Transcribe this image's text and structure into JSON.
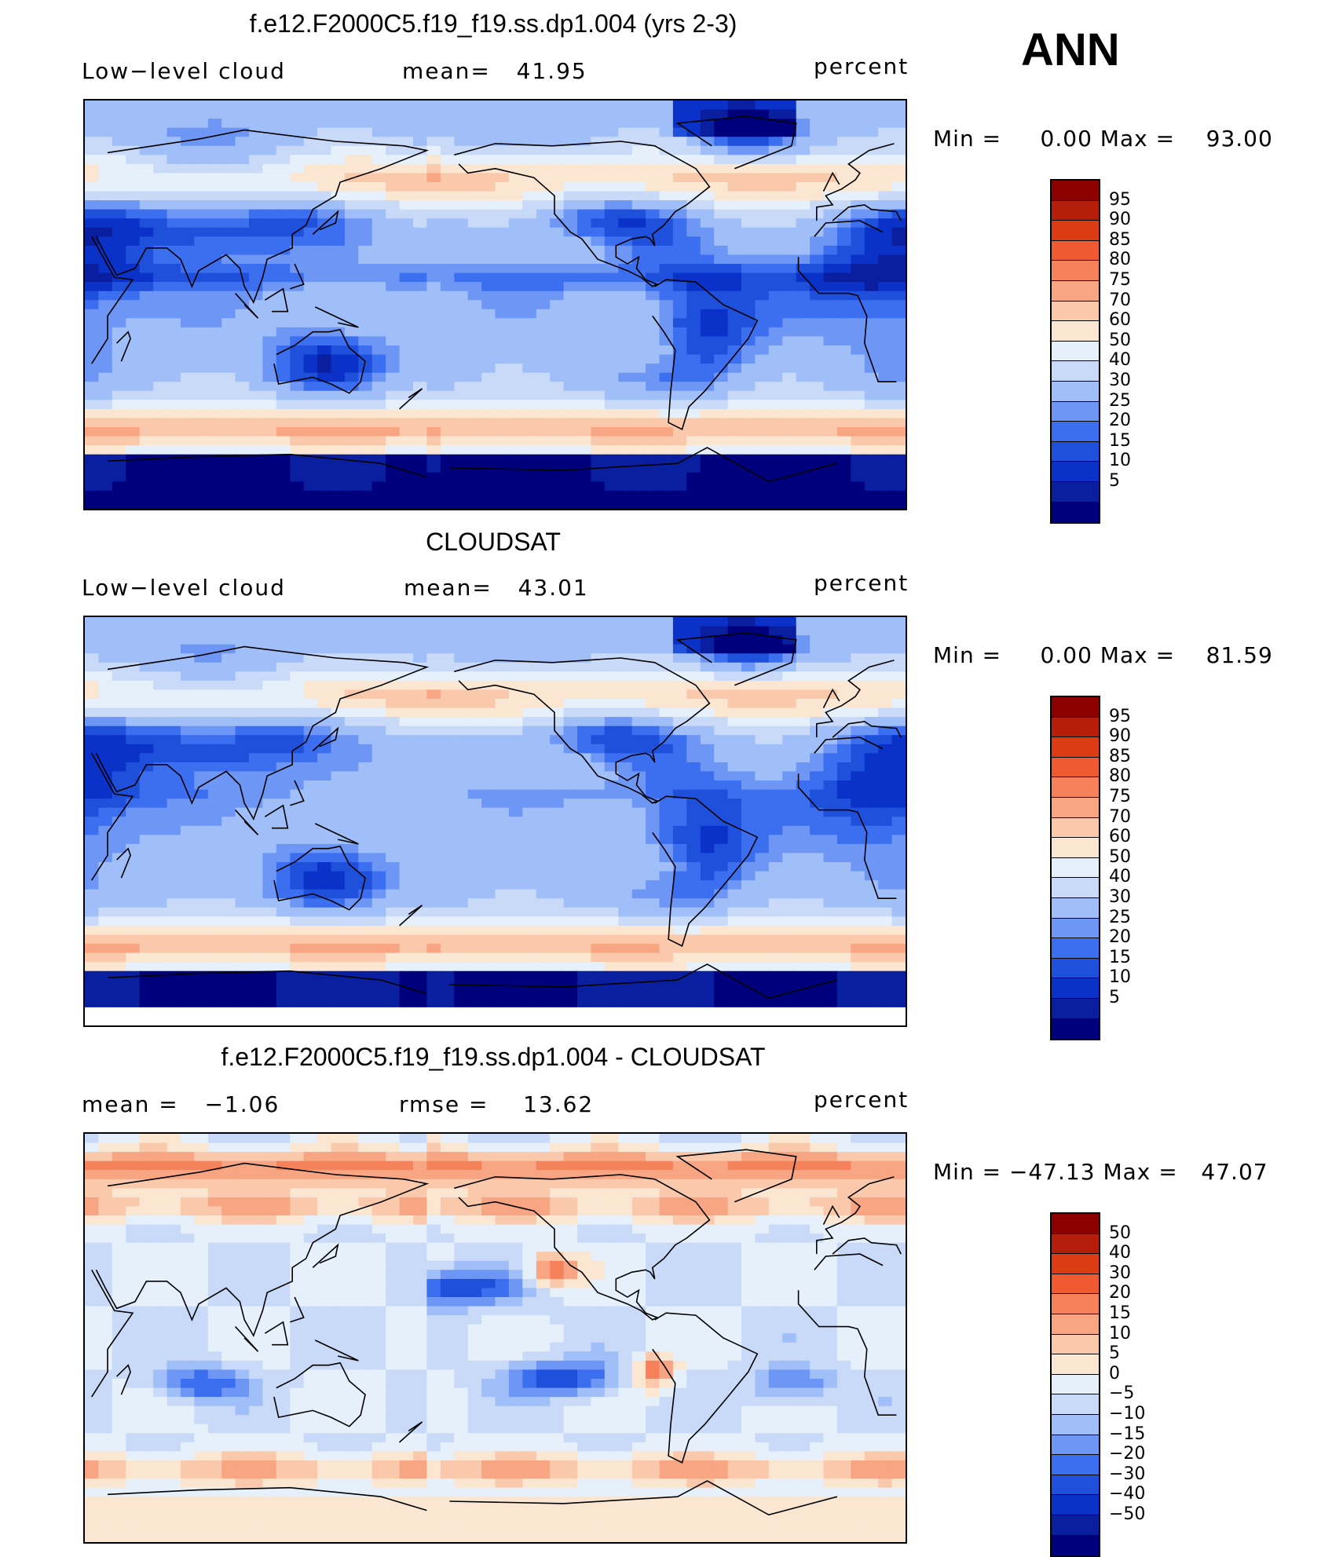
{
  "season": "ANN",
  "colors": {
    "abs": [
      "#00007d",
      "#0a1ea0",
      "#0a32c8",
      "#1e50dc",
      "#3c6ef0",
      "#6e96f5",
      "#a0bef8",
      "#c8daf8",
      "#e6f0fa",
      "#fbe6d2",
      "#fac8aa",
      "#f7a582",
      "#f5825a",
      "#f05a32",
      "#dc3c14",
      "#b41e0a",
      "#8c0000"
    ],
    "diff": [
      "#00007d",
      "#0a1ea0",
      "#0a32c8",
      "#1e50dc",
      "#3c6ef0",
      "#6e96f5",
      "#a0bef8",
      "#c8daf8",
      "#e6f0fa",
      "#fbe6d2",
      "#fac8aa",
      "#f7a582",
      "#f5825a",
      "#f05a32",
      "#dc3c14",
      "#b41e0a",
      "#8c0000"
    ],
    "coast": "#000000"
  },
  "panels": [
    {
      "title": "f.e12.F2000C5.f19_f19.ss.dp1.004 (yrs 2-3)",
      "left_label": "Low−level cloud",
      "center_label": "mean=   41.95",
      "right_label": "percent",
      "minmax": "Min =     0.00 Max =    93.00",
      "colorbar_labels": [
        "95",
        "90",
        "85",
        "80",
        "75",
        "70",
        "60",
        "50",
        "40",
        "30",
        "25",
        "20",
        "15",
        "10",
        "5"
      ],
      "palette": "abs"
    },
    {
      "title": "CLOUDSAT",
      "left_label": "Low−level cloud",
      "center_label": "mean=   43.01",
      "right_label": "percent",
      "minmax": "Min =     0.00 Max =    81.59",
      "colorbar_labels": [
        "95",
        "90",
        "85",
        "80",
        "75",
        "70",
        "60",
        "50",
        "40",
        "30",
        "25",
        "20",
        "15",
        "10",
        "5"
      ],
      "palette": "abs"
    },
    {
      "title": "f.e12.F2000C5.f19_f19.ss.dp1.004 - CLOUDSAT",
      "left_label": "mean =   −1.06",
      "center_label": "rmse =    13.62",
      "right_label": "percent",
      "minmax": "Min = −47.13 Max =   47.07",
      "colorbar_labels": [
        "50",
        "40",
        "30",
        "20",
        "15",
        "10",
        "5",
        "0",
        "−5",
        "−10",
        "−15",
        "−20",
        "−30",
        "−40",
        "−50"
      ],
      "palette": "diff"
    }
  ]
}
